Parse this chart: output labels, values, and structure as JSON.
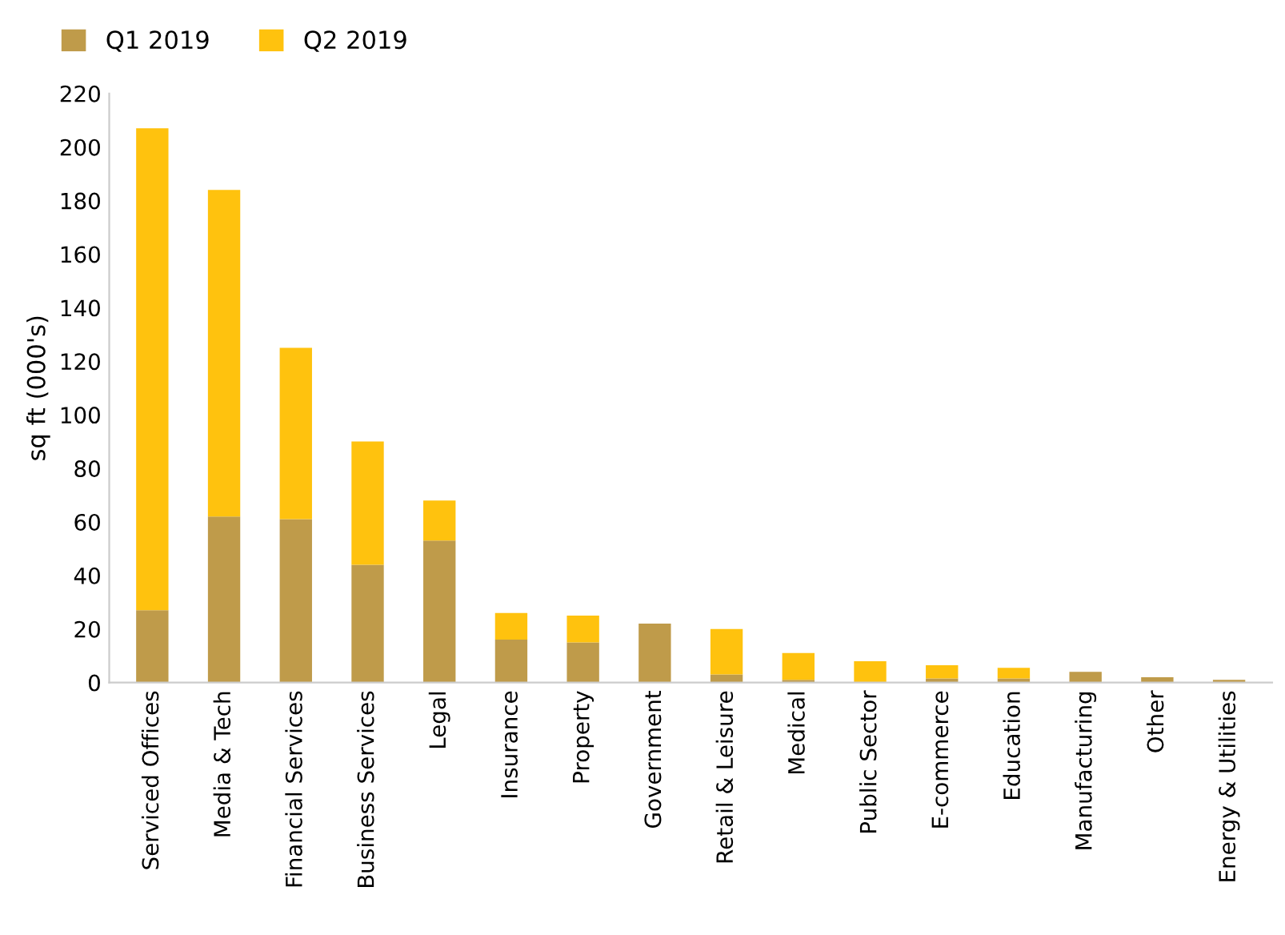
{
  "chart_data": {
    "type": "bar",
    "stacked": true,
    "ylabel": "sq ft (000's)",
    "categories": [
      "Serviced Offices",
      "Media & Tech",
      "Financial Services",
      "Business Services",
      "Legal",
      "Insurance",
      "Property",
      "Government",
      "Retail & Leisure",
      "Medical",
      "Public Sector",
      "E-commerce",
      "Education",
      "Manufacturing",
      "Other",
      "Energy & Utilities"
    ],
    "series": [
      {
        "name": "Q1 2019",
        "color": "#bf9b4a",
        "values": [
          27,
          62,
          61,
          44,
          53,
          16,
          15,
          22,
          3,
          1,
          0,
          1.5,
          1.5,
          4,
          2,
          1
        ]
      },
      {
        "name": "Q2 2019",
        "color": "#ffc20e",
        "values": [
          180,
          122,
          64,
          46,
          15,
          10,
          10,
          0,
          17,
          10,
          8,
          5,
          4,
          0,
          0,
          0
        ]
      }
    ],
    "ylim": [
      0,
      220
    ],
    "yticks": [
      0,
      20,
      40,
      60,
      80,
      100,
      120,
      140,
      160,
      180,
      200,
      220
    ],
    "grid": false,
    "legend": "top left"
  }
}
